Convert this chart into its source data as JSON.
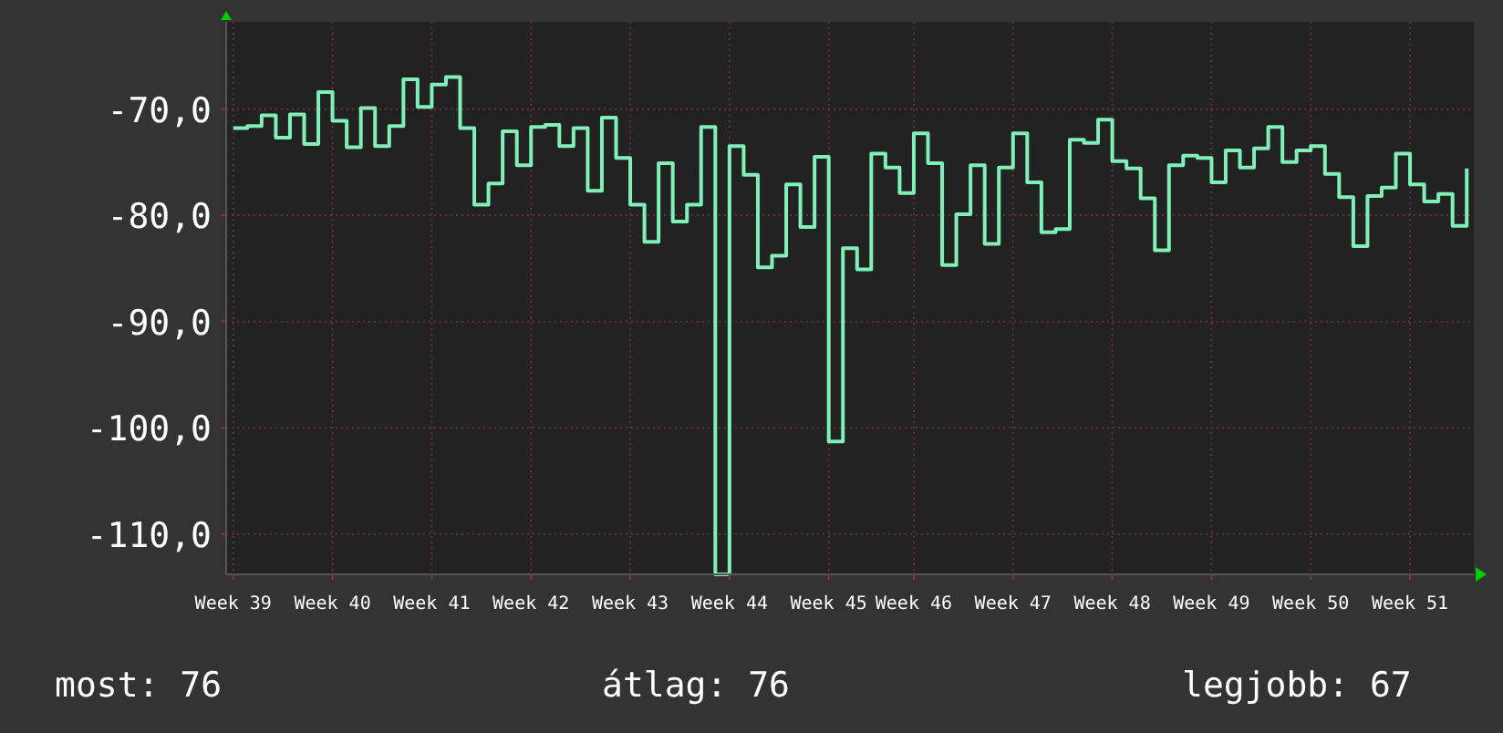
{
  "chart_data": {
    "type": "step",
    "ylim": [
      -113.8,
      -61.8
    ],
    "categories": [
      "Week 39",
      null,
      null,
      null,
      null,
      null,
      null,
      "Week 40",
      null,
      null,
      null,
      null,
      null,
      null,
      "Week 41",
      null,
      null,
      null,
      null,
      null,
      null,
      "Week 42",
      null,
      null,
      null,
      null,
      null,
      null,
      "Week 43",
      null,
      null,
      null,
      null,
      null,
      null,
      "Week 44",
      null,
      null,
      null,
      null,
      null,
      null,
      "Week 45",
      null,
      null,
      null,
      null,
      null,
      "Week 46",
      null,
      null,
      null,
      null,
      null,
      null,
      "Week 47",
      null,
      null,
      null,
      null,
      null,
      null,
      "Week 48",
      null,
      null,
      null,
      null,
      null,
      null,
      "Week 49",
      null,
      null,
      null,
      null,
      null,
      null,
      "Week 50",
      null,
      null,
      null,
      null,
      null,
      null,
      "Week 51",
      null,
      null,
      null,
      null
    ],
    "yticks": [
      {
        "value": -70,
        "label": "-70,0"
      },
      {
        "value": -80,
        "label": "-80,0"
      },
      {
        "value": -90,
        "label": "-90,0"
      },
      {
        "value": -100,
        "label": "-100,0"
      },
      {
        "value": -110,
        "label": "-110,0"
      }
    ],
    "grid": true,
    "series": [
      {
        "color": "#80f0b8",
        "values": [
          -71.8,
          -71.6,
          -70.6,
          -72.7,
          -70.5,
          -73.3,
          -68.4,
          -71.1,
          -73.6,
          -69.9,
          -73.5,
          -71.6,
          -67.2,
          -69.8,
          -67.7,
          -67.0,
          -71.8,
          -79.0,
          -77.0,
          -72.1,
          -75.3,
          -71.7,
          -71.5,
          -73.5,
          -71.8,
          -77.7,
          -70.8,
          -74.6,
          -79.0,
          -82.5,
          -75.1,
          -80.6,
          -79.0,
          -71.7,
          -113.8,
          -73.5,
          -76.2,
          -84.9,
          -83.8,
          -77.1,
          -81.1,
          -74.5,
          -101.3,
          -83.1,
          -85.1,
          -74.2,
          -75.5,
          -77.9,
          -72.3,
          -75.1,
          -84.7,
          -79.9,
          -75.3,
          -82.7,
          -75.5,
          -72.3,
          -76.9,
          -81.6,
          -81.3,
          -72.9,
          -73.2,
          -71.0,
          -74.9,
          -75.6,
          -78.4,
          -83.3,
          -75.3,
          -74.4,
          -74.6,
          -76.9,
          -73.9,
          -75.5,
          -73.7,
          -71.7,
          -75.0,
          -73.9,
          -73.5,
          -76.1,
          -78.3,
          -82.9,
          -78.2,
          -77.4,
          -74.2,
          -77.1,
          -78.7,
          -78.0,
          -81.0,
          -75.6
        ]
      }
    ],
    "annotations": [
      "most: 76",
      "átlag: 76",
      "legjobb: 67"
    ]
  }
}
